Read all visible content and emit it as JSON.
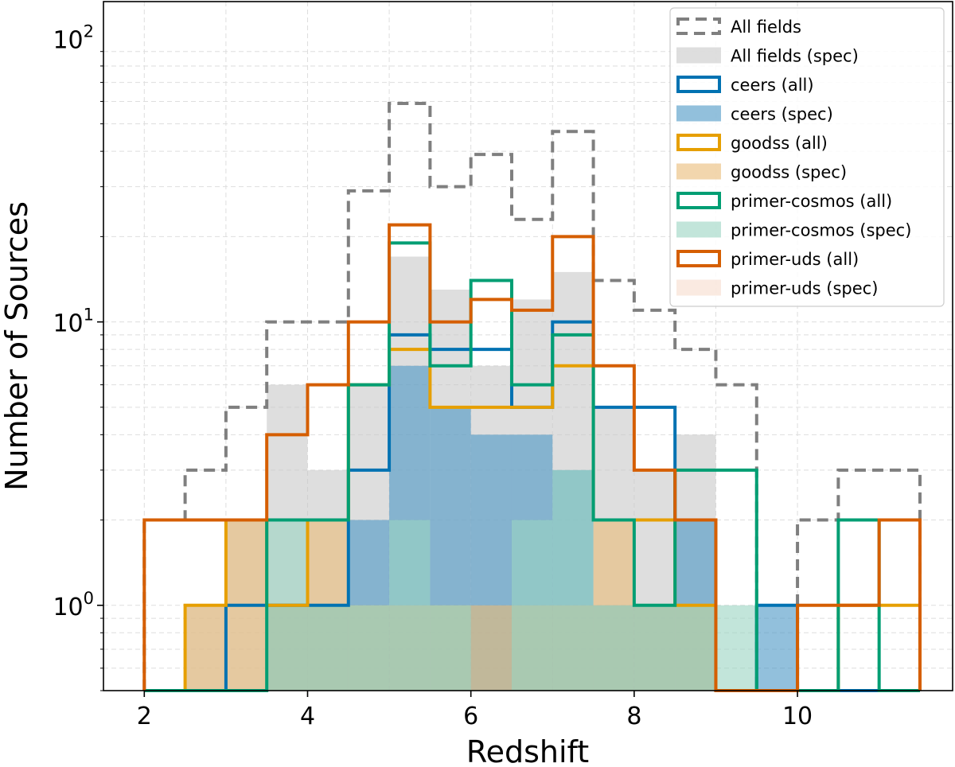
{
  "chart_data": {
    "type": "bar",
    "subtype": "step-histogram",
    "title": "",
    "xlabel": "Redshift",
    "ylabel": "Number of Sources",
    "yscale": "log",
    "xlim": [
      1.5,
      11.9
    ],
    "ylim": [
      0.5,
      135
    ],
    "xticks": [
      2,
      4,
      6,
      8,
      10
    ],
    "xtick_labels": [
      "2",
      "4",
      "6",
      "8",
      "10"
    ],
    "yticks": [
      {
        "value": 1,
        "base": "10",
        "exp": "0"
      },
      {
        "value": 10,
        "base": "10",
        "exp": "1"
      },
      {
        "value": 100,
        "base": "10",
        "exp": "2"
      }
    ],
    "grid": true,
    "legend_position": "top-right",
    "bin_edges": [
      2,
      2.5,
      3,
      3.5,
      4,
      4.5,
      5,
      5.5,
      6,
      6.5,
      7,
      7.5,
      8,
      8.5,
      9,
      9.5,
      10,
      10.5,
      11,
      11.5
    ],
    "series": [
      {
        "name": "All fields",
        "style": "step-dashed",
        "color": "#7f7f7f",
        "values": [
          2,
          3,
          5,
          10,
          10,
          29,
          59,
          30,
          39,
          23,
          47,
          14,
          11,
          8,
          6,
          0,
          2,
          3,
          3
        ]
      },
      {
        "name": "All fields (spec)",
        "style": "filled",
        "color": "#c8c8c8",
        "values": [
          0,
          1,
          2,
          6,
          3,
          6,
          17,
          13,
          7,
          12,
          15,
          5,
          3,
          4,
          0,
          0,
          0,
          0,
          0
        ]
      },
      {
        "name": "ceers (all)",
        "style": "step",
        "color": "#0072b2",
        "values": [
          0,
          0,
          1,
          1,
          1,
          3,
          9,
          8,
          8,
          5,
          10,
          5,
          5,
          2,
          0,
          1,
          0,
          0,
          0
        ]
      },
      {
        "name": "ceers (spec)",
        "style": "filled",
        "color": "#4a96c4",
        "values": [
          0,
          0,
          0,
          1,
          1,
          2,
          7,
          5,
          4,
          4,
          3,
          1,
          1,
          2,
          0,
          1,
          0,
          0,
          0
        ]
      },
      {
        "name": "goodss (all)",
        "style": "step",
        "color": "#e69f00",
        "values": [
          0,
          1,
          2,
          1,
          2,
          6,
          8,
          5,
          5,
          5,
          7,
          2,
          2,
          1,
          0,
          0,
          0,
          1,
          1
        ]
      },
      {
        "name": "goodss (spec)",
        "style": "filled",
        "color": "#e9bb77",
        "values": [
          0,
          1,
          2,
          1,
          2,
          1,
          1,
          1,
          1,
          1,
          1,
          2,
          1,
          1,
          0,
          0,
          0,
          0,
          0
        ]
      },
      {
        "name": "primer-cosmos (all)",
        "style": "step",
        "color": "#009e73",
        "values": [
          0,
          0,
          0,
          2,
          2,
          6,
          19,
          7,
          14,
          6,
          9,
          2,
          1,
          3,
          3,
          0,
          0,
          2,
          0
        ]
      },
      {
        "name": "primer-cosmos (spec)",
        "style": "filled",
        "color": "#9ad3c2",
        "values": [
          0,
          0,
          0,
          2,
          1,
          1,
          2,
          1,
          0,
          2,
          3,
          1,
          1,
          1,
          1,
          0,
          0,
          0,
          0
        ]
      },
      {
        "name": "primer-uds (all)",
        "style": "step",
        "color": "#d55e00",
        "values": [
          2,
          2,
          2,
          4,
          6,
          10,
          22,
          10,
          12,
          11,
          20,
          7,
          3,
          2,
          0,
          0,
          1,
          1,
          2
        ]
      },
      {
        "name": "primer-uds (spec)",
        "style": "filled",
        "color": "#f6dccd",
        "values": [
          0,
          0,
          0,
          0,
          0,
          0,
          0,
          0,
          0,
          0,
          0,
          0,
          0,
          0,
          0,
          0,
          0,
          0,
          0
        ]
      }
    ]
  }
}
